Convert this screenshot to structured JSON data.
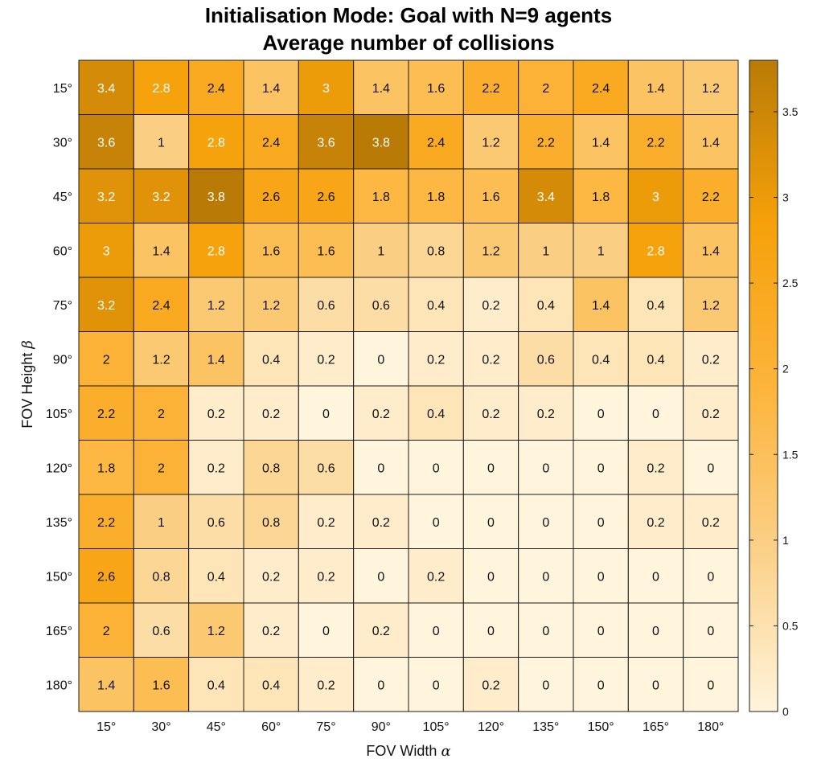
{
  "chart_data": {
    "type": "heatmap",
    "title": "Initialisation Mode: Goal with N=9 agents",
    "subtitle": "Average number of collisions",
    "xlabel": "FOV Width",
    "xlabel_symbol": "α",
    "ylabel": "FOV Height",
    "ylabel_symbol": "β",
    "x_categories": [
      "15°",
      "30°",
      "45°",
      "60°",
      "75°",
      "90°",
      "105°",
      "120°",
      "135°",
      "150°",
      "165°",
      "180°"
    ],
    "y_categories": [
      "15°",
      "30°",
      "45°",
      "60°",
      "75°",
      "90°",
      "105°",
      "120°",
      "135°",
      "150°",
      "165°",
      "180°"
    ],
    "values": [
      [
        3.4,
        2.8,
        2.4,
        1.4,
        3,
        1.4,
        1.6,
        2.2,
        2,
        2.4,
        1.4,
        1.2
      ],
      [
        3.6,
        1,
        2.8,
        2.4,
        3.6,
        3.8,
        2.4,
        1.2,
        2.2,
        1.4,
        2.2,
        1.4
      ],
      [
        3.2,
        3.2,
        3.8,
        2.6,
        2.6,
        1.8,
        1.8,
        1.6,
        3.4,
        1.8,
        3,
        2.2
      ],
      [
        3,
        1.4,
        2.8,
        1.6,
        1.6,
        1,
        0.8,
        1.2,
        1,
        1,
        2.8,
        1.4
      ],
      [
        3.2,
        2.4,
        1.2,
        1.2,
        0.6,
        0.6,
        0.4,
        0.2,
        0.4,
        1.4,
        0.4,
        1.2
      ],
      [
        2,
        1.2,
        1.4,
        0.4,
        0.2,
        0,
        0.2,
        0.2,
        0.6,
        0.4,
        0.4,
        0.2
      ],
      [
        2.2,
        2,
        0.2,
        0.2,
        0,
        0.2,
        0.4,
        0.2,
        0.2,
        0,
        0,
        0.2
      ],
      [
        1.8,
        2,
        0.2,
        0.8,
        0.6,
        0,
        0,
        0,
        0,
        0,
        0.2,
        0
      ],
      [
        2.2,
        1,
        0.6,
        0.8,
        0.2,
        0.2,
        0,
        0,
        0,
        0,
        0.2,
        0.2
      ],
      [
        2.6,
        0.8,
        0.4,
        0.2,
        0.2,
        0,
        0.2,
        0,
        0,
        0,
        0,
        0
      ],
      [
        2,
        0.6,
        1.2,
        0.2,
        0,
        0.2,
        0,
        0,
        0,
        0,
        0,
        0
      ],
      [
        1.4,
        1.6,
        0.4,
        0.4,
        0.2,
        0,
        0,
        0.2,
        0,
        0,
        0,
        0
      ]
    ],
    "colorbar": {
      "range": [
        0,
        3.8
      ],
      "ticks": [
        "0",
        "0.5",
        "1",
        "1.5",
        "2",
        "2.5",
        "3",
        "3.5"
      ],
      "colors": [
        "#fff4dc",
        "#fbd087",
        "#fdb43b",
        "#f6a10a",
        "#b97b06"
      ]
    },
    "white_text_threshold": 2.7
  }
}
